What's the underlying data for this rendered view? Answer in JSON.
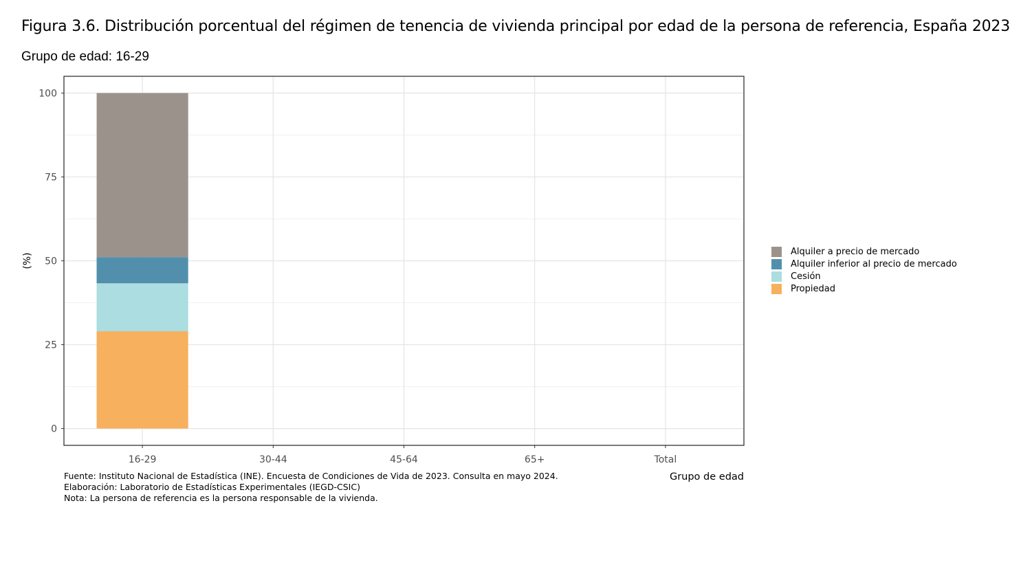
{
  "title": "Figura 3.6. Distribución porcentual del régimen de tenencia de vivienda principal por edad de la persona de referencia, España 2023",
  "subtitle": "Grupo de edad: 16-29",
  "notes": [
    "Fuente: Instituto Nacional de Estadística (INE). Encuesta de Condiciones de Vida de 2023. Consulta en mayo 2024.",
    "Elaboración: Laboratorio de Estadísticas Experimentales (IEGD-CSIC)",
    "Nota: La persona de referencia es la persona responsable de la vivienda."
  ],
  "chart_data": {
    "type": "bar",
    "stacked": true,
    "xlabel": "Grupo de edad",
    "ylabel": "(%)",
    "ylim": [
      -5,
      105
    ],
    "yticks": [
      0,
      25,
      50,
      75,
      100
    ],
    "grid": true,
    "legend_position": "right",
    "categories": [
      "16-29",
      "30-44",
      "45-64",
      "65+",
      "Total"
    ],
    "series": [
      {
        "name": "Propiedad",
        "color": "#F7B05E",
        "values": [
          29,
          null,
          null,
          null,
          null
        ]
      },
      {
        "name": "Cesión",
        "color": "#ABDDE1",
        "values": [
          14.3,
          null,
          null,
          null,
          null
        ]
      },
      {
        "name": "Alquiler inferior al precio de mercado",
        "color": "#528FAD",
        "values": [
          7.8,
          null,
          null,
          null,
          null
        ]
      },
      {
        "name": "Alquiler a precio de mercado",
        "color": "#9B928B",
        "values": [
          48.9,
          null,
          null,
          null,
          null
        ]
      }
    ],
    "legend_order": [
      "Alquiler a precio de mercado",
      "Alquiler inferior al precio de mercado",
      "Cesión",
      "Propiedad"
    ]
  }
}
